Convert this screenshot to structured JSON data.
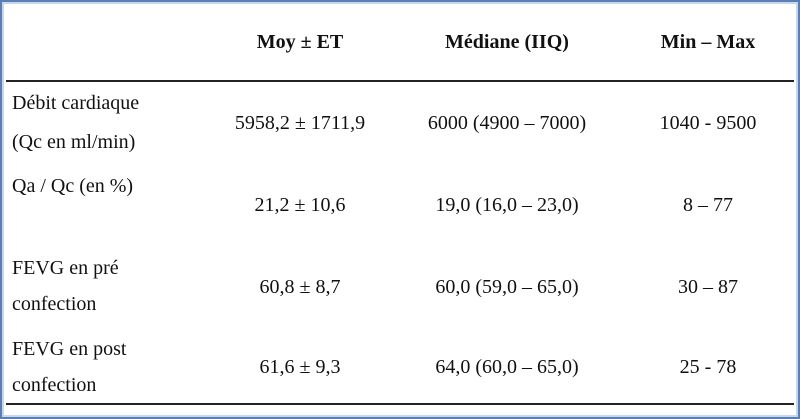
{
  "table": {
    "header": [
      "Moy ± ET",
      "Médiane (IIQ)",
      "Min – Max"
    ],
    "rows": [
      {
        "label": [
          "Débit cardiaque",
          "(Qc en ml/min)"
        ],
        "cells": [
          "5958,2 ± 1711,9",
          "6000 (4900 – 7000)",
          "1040 - 9500"
        ]
      },
      {
        "label": [
          "Qa / Qc (en %)"
        ],
        "cells": [
          "21,2 ± 10,6",
          "19,0 (16,0 – 23,0)",
          "8 – 77"
        ]
      },
      {
        "label": [
          "FEVG en pré",
          "confection"
        ],
        "cells": [
          "60,8 ± 8,7",
          "60,0 (59,0 – 65,0)",
          "30 – 87"
        ]
      },
      {
        "label": [
          "FEVG en post",
          "confection"
        ],
        "cells": [
          "61,6 ± 9,3",
          "64,0 (60,0 – 65,0)",
          "25 - 78"
        ]
      }
    ]
  }
}
